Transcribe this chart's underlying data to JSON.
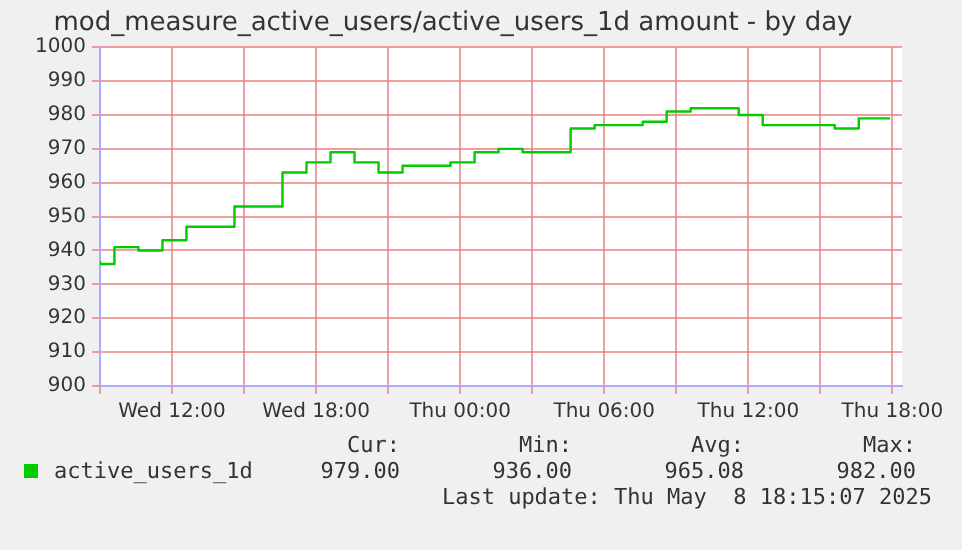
{
  "chart_data": {
    "type": "step",
    "title": "mod_measure_active_users/active_users_1d amount - by day",
    "x": [
      "2025-05-07T09:00",
      "2025-05-07T09:36",
      "2025-05-07T10:36",
      "2025-05-07T11:36",
      "2025-05-07T12:36",
      "2025-05-07T14:36",
      "2025-05-07T16:36",
      "2025-05-07T17:36",
      "2025-05-07T18:36",
      "2025-05-07T19:36",
      "2025-05-07T20:36",
      "2025-05-07T21:36",
      "2025-05-07T23:36",
      "2025-05-08T00:36",
      "2025-05-08T01:36",
      "2025-05-08T02:36",
      "2025-05-08T04:36",
      "2025-05-08T05:36",
      "2025-05-08T07:36",
      "2025-05-08T08:36",
      "2025-05-08T09:36",
      "2025-05-08T11:36",
      "2025-05-08T12:36",
      "2025-05-08T15:36",
      "2025-05-08T16:36",
      "2025-05-08T17:36",
      "2025-05-08T17:54"
    ],
    "series": [
      {
        "name": "active_users_1d",
        "color": "#00cc00",
        "values": [
          937,
          936,
          941,
          940,
          943,
          947,
          953,
          963,
          966,
          969,
          966,
          963,
          965,
          966,
          969,
          970,
          969,
          976,
          977,
          978,
          981,
          982,
          980,
          977,
          976,
          979,
          979
        ]
      }
    ],
    "xlim": [
      "2025-05-07T09:00",
      "2025-05-08T18:24"
    ],
    "xticks": [
      {
        "value": "2025-05-07T09:00",
        "label": null
      },
      {
        "value": "2025-05-07T12:00",
        "label": "Wed 12:00"
      },
      {
        "value": "2025-05-07T15:00",
        "label": null
      },
      {
        "value": "2025-05-07T18:00",
        "label": "Wed 18:00"
      },
      {
        "value": "2025-05-07T21:00",
        "label": null
      },
      {
        "value": "2025-05-08T00:00",
        "label": "Thu 00:00"
      },
      {
        "value": "2025-05-08T03:00",
        "label": null
      },
      {
        "value": "2025-05-08T06:00",
        "label": "Thu 06:00"
      },
      {
        "value": "2025-05-08T09:00",
        "label": null
      },
      {
        "value": "2025-05-08T12:00",
        "label": "Thu 12:00"
      },
      {
        "value": "2025-05-08T15:00",
        "label": null
      },
      {
        "value": "2025-05-08T18:00",
        "label": "Thu 18:00"
      }
    ],
    "ylim": [
      900,
      1000
    ],
    "yticks": [
      900,
      910,
      920,
      930,
      940,
      950,
      960,
      970,
      980,
      990,
      1000
    ],
    "grid": true,
    "legend": "bottom",
    "annotations": [
      "Cur:",
      "Min:",
      "Avg:",
      "Max:",
      "979.00",
      "936.00",
      "965.08",
      "982.00",
      "Last update: Thu May  8 18:15:07 2025"
    ]
  }
}
